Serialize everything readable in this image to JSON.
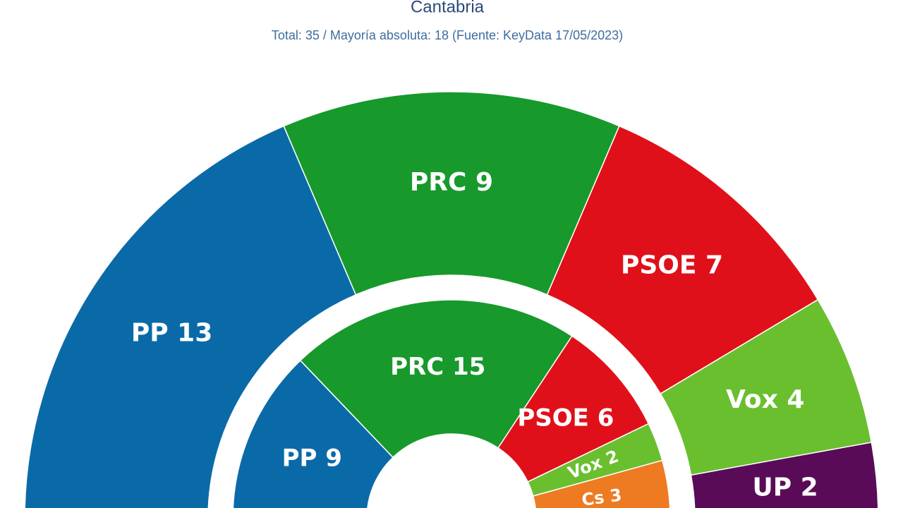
{
  "chart_data": {
    "type": "parliament",
    "title": "Cantabria",
    "subtitle": "Total: 35 / Mayoría absoluta: 18 (Fuente: KeyData 17/05/2023)",
    "series": [
      {
        "categories": [
          "PP",
          "PRC",
          "PSOE",
          "Vox",
          "UP"
        ],
        "values": [
          13,
          9,
          7,
          4,
          2
        ],
        "colors": [
          "#0a6aa8",
          "#17992c",
          "#e0101a",
          "#6abf2e",
          "#5a0b58"
        ]
      },
      {
        "categories": [
          "PP",
          "PRC",
          "PSOE",
          "Vox",
          "Cs"
        ],
        "values": [
          9,
          15,
          6,
          2,
          3
        ],
        "colors": [
          "#0a6aa8",
          "#17992c",
          "#e0101a",
          "#6abf2e",
          "#ee7a22"
        ]
      }
    ]
  }
}
